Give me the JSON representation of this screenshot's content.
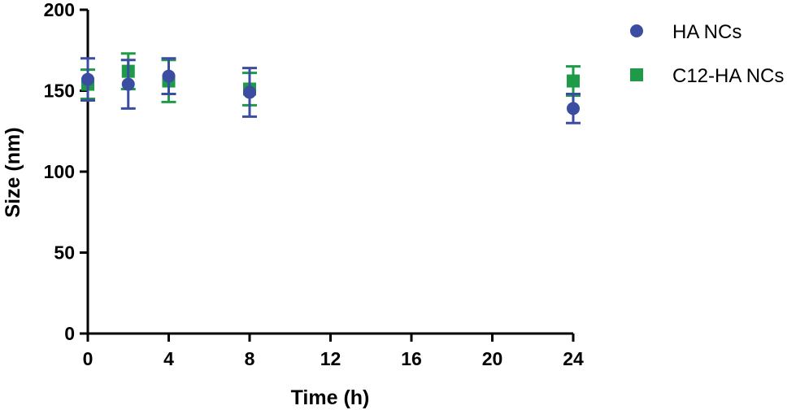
{
  "chart_data": {
    "type": "scatter",
    "xlabel": "Time (h)",
    "ylabel": "Size (nm)",
    "xlim": [
      0,
      24
    ],
    "ylim": [
      0,
      200
    ],
    "x_ticks": [
      "0",
      "4",
      "8",
      "12",
      "16",
      "20",
      "24"
    ],
    "y_ticks": [
      "0",
      "50",
      "100",
      "150",
      "200"
    ],
    "grid": false,
    "legend_position": "right",
    "series": [
      {
        "name": "HA NCs",
        "marker": "circle",
        "color": "#3a4da0",
        "x": [
          0,
          2,
          4,
          8,
          24
        ],
        "y": [
          157,
          154,
          159,
          149,
          139
        ],
        "err": [
          13,
          15,
          11,
          15,
          9
        ]
      },
      {
        "name": "C12-HA NCs",
        "marker": "square",
        "color": "#1f9a48",
        "x": [
          0,
          2,
          4,
          8,
          24
        ],
        "y": [
          154,
          162,
          156,
          151,
          156
        ],
        "err": [
          9,
          11,
          13,
          10,
          9
        ]
      }
    ]
  }
}
